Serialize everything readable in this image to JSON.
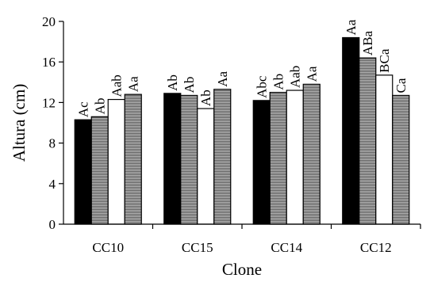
{
  "chart_data": {
    "type": "bar",
    "title": "",
    "xlabel": "Clone",
    "ylabel": "Altura (cm)",
    "ylim": [
      0,
      20
    ],
    "yticks": [
      0,
      4,
      8,
      12,
      16,
      20
    ],
    "grid": false,
    "legend": "none",
    "categories": [
      "CC10",
      "CC15",
      "CC14",
      "CC12"
    ],
    "series": [
      {
        "values": [
          10.3,
          12.9,
          12.2,
          18.4
        ],
        "labels": [
          "Ac",
          "Ab",
          "Abc",
          "Aa"
        ],
        "fill": "solid",
        "color": "#000000"
      },
      {
        "values": [
          10.6,
          12.7,
          13.0,
          16.4
        ],
        "labels": [
          "Ab",
          "Ab",
          "Ab",
          "ABa"
        ],
        "fill": "hatch",
        "color": "#8a8a8a"
      },
      {
        "values": [
          12.3,
          11.4,
          13.2,
          14.7
        ],
        "labels": [
          "Aab",
          "Ab",
          "Aab",
          "BCa"
        ],
        "fill": "white",
        "color": "#ffffff"
      },
      {
        "values": [
          12.8,
          13.3,
          13.8,
          12.7
        ],
        "labels": [
          "Aa",
          "Aa",
          "Aa",
          "Ca"
        ],
        "fill": "hatch",
        "color": "#8a8a8a"
      }
    ]
  }
}
